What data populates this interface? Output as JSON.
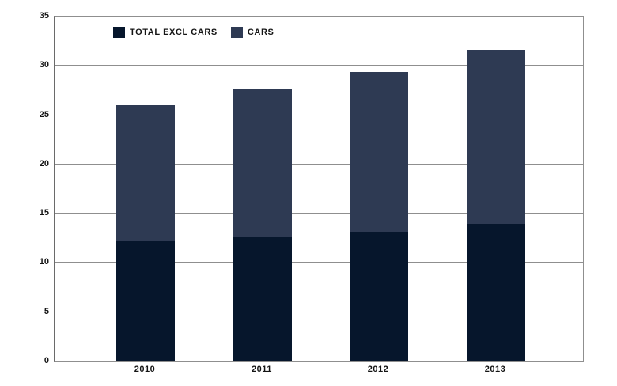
{
  "chart_data": {
    "type": "bar",
    "stacked": true,
    "categories": [
      "2010",
      "2011",
      "2012",
      "2013"
    ],
    "series": [
      {
        "name": "TOTAL EXCL CARS",
        "color": "#06162c",
        "values": [
          12.2,
          12.7,
          13.2,
          14.0
        ]
      },
      {
        "name": "CARS",
        "color": "#2e3a53",
        "values": [
          13.8,
          15.0,
          16.2,
          17.7
        ]
      }
    ],
    "stack_totals": [
      26.0,
      27.7,
      29.4,
      31.7
    ],
    "ylim": [
      0,
      35
    ],
    "yticks": [
      0,
      5,
      10,
      15,
      20,
      25,
      30,
      35
    ],
    "grid": "horizontal",
    "legend_position": "top-inside",
    "colors": {
      "background": "#ffffff",
      "gridline": "#8f8f8f",
      "axis": "#6a6a6a",
      "text": "#141414"
    }
  }
}
